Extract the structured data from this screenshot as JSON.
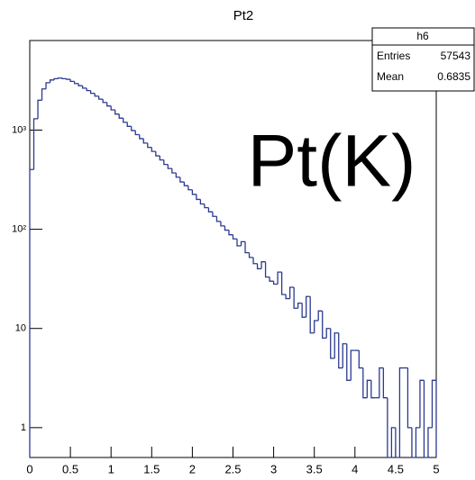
{
  "chart_data": {
    "type": "histogram",
    "title": "Pt2",
    "annotation": "Pt(K)",
    "stats": {
      "name": "h6",
      "rows": [
        [
          "Entries",
          "57543"
        ],
        [
          "Mean",
          "0.6835"
        ]
      ]
    },
    "color": "#2b3a8f",
    "log_y": true,
    "xlim": [
      0,
      5
    ],
    "xticks": [
      0,
      0.5,
      1,
      1.5,
      2,
      2.5,
      3,
      3.5,
      4,
      4.5,
      5
    ],
    "ylim": [
      0.5,
      8000
    ],
    "yticks": [
      1,
      10,
      {
        "value": 100,
        "label": "10²"
      },
      {
        "value": 1000,
        "label": "10³"
      }
    ],
    "bins": [
      0,
      0.05,
      0.1,
      0.15,
      0.2,
      0.25,
      0.3,
      0.35,
      0.4,
      0.45,
      0.5,
      0.55,
      0.6,
      0.65,
      0.7,
      0.75,
      0.8,
      0.85,
      0.9,
      0.95,
      1,
      1.05,
      1.1,
      1.15,
      1.2,
      1.25,
      1.3,
      1.35,
      1.4,
      1.45,
      1.5,
      1.55,
      1.6,
      1.65,
      1.7,
      1.75,
      1.8,
      1.85,
      1.9,
      1.95,
      2,
      2.05,
      2.1,
      2.15,
      2.2,
      2.25,
      2.3,
      2.35,
      2.4,
      2.45,
      2.5,
      2.55,
      2.6,
      2.65,
      2.7,
      2.75,
      2.8,
      2.85,
      2.9,
      2.95,
      3,
      3.05,
      3.1,
      3.15,
      3.2,
      3.25,
      3.3,
      3.35,
      3.4,
      3.45,
      3.5,
      3.55,
      3.6,
      3.65,
      3.7,
      3.75,
      3.8,
      3.85,
      3.9,
      3.95,
      4,
      4.05,
      4.1,
      4.15,
      4.2,
      4.25,
      4.3,
      4.35,
      4.4,
      4.45,
      4.5,
      4.55,
      4.6,
      4.65,
      4.7,
      4.75,
      4.8,
      4.85,
      4.9,
      4.95,
      5
    ],
    "values": [
      400,
      1300,
      2000,
      2600,
      3000,
      3200,
      3300,
      3350,
      3300,
      3250,
      3100,
      2950,
      2800,
      2650,
      2500,
      2350,
      2200,
      2050,
      1900,
      1750,
      1600,
      1450,
      1320,
      1200,
      1090,
      990,
      900,
      820,
      740,
      670,
      610,
      550,
      500,
      450,
      410,
      370,
      335,
      300,
      275,
      250,
      225,
      200,
      180,
      165,
      150,
      135,
      120,
      108,
      98,
      88,
      80,
      68,
      75,
      58,
      52,
      45,
      40,
      47,
      33,
      30,
      28,
      37,
      22,
      20,
      26,
      16,
      18,
      13,
      21,
      9,
      12,
      15,
      8,
      10,
      5,
      9,
      4,
      7,
      3,
      6,
      6,
      4,
      2,
      3,
      2,
      2,
      4,
      2,
      0,
      1,
      0,
      4,
      4,
      1,
      0,
      1,
      3,
      0,
      1,
      3
    ]
  }
}
